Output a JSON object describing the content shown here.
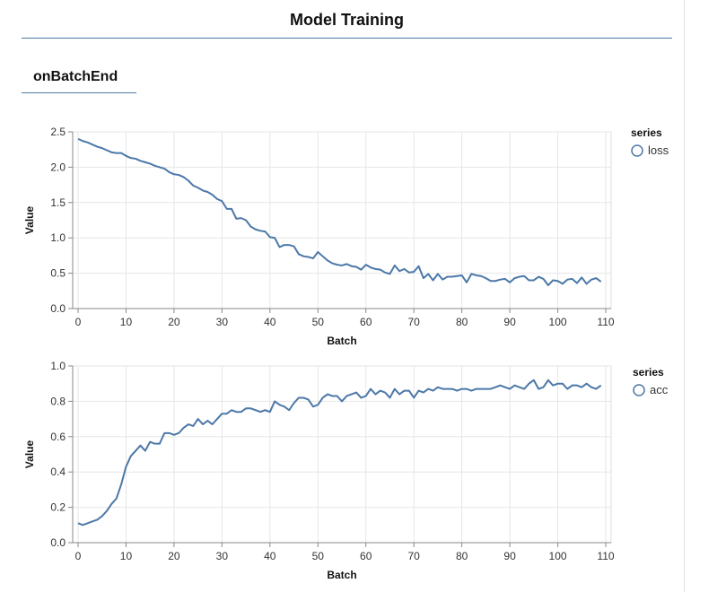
{
  "header": {
    "title": "Model Training"
  },
  "tab": {
    "label": "onBatchEnd"
  },
  "colors": {
    "series": "#4c78a8",
    "grid": "#e6e6e6",
    "accent": "#4f7aa3"
  },
  "chart_data": [
    {
      "type": "line",
      "xlabel": "Batch",
      "ylabel": "Value",
      "xlim": [
        0,
        110
      ],
      "ylim": [
        0,
        2.5
      ],
      "xticks": [
        "0",
        "10",
        "20",
        "30",
        "40",
        "50",
        "60",
        "70",
        "80",
        "90",
        "100",
        "110"
      ],
      "xtick_values": [
        0,
        10,
        20,
        30,
        40,
        50,
        60,
        70,
        80,
        90,
        100,
        110
      ],
      "yticks": [
        "0.0",
        "0.5",
        "1.0",
        "1.5",
        "2.0",
        "2.5"
      ],
      "ytick_values": [
        0,
        0.5,
        1.0,
        1.5,
        2.0,
        2.5
      ],
      "grid": true,
      "legend": {
        "title": "series",
        "placement": "right"
      },
      "series": [
        {
          "name": "loss",
          "x": [
            0,
            1,
            2,
            3,
            4,
            5,
            6,
            7,
            8,
            9,
            10,
            11,
            12,
            13,
            14,
            15,
            16,
            17,
            18,
            19,
            20,
            21,
            22,
            23,
            24,
            25,
            26,
            27,
            28,
            29,
            30,
            31,
            32,
            33,
            34,
            35,
            36,
            37,
            38,
            39,
            40,
            41,
            42,
            43,
            44,
            45,
            46,
            47,
            48,
            49,
            50,
            51,
            52,
            53,
            54,
            55,
            56,
            57,
            58,
            59,
            60,
            61,
            62,
            63,
            64,
            65,
            66,
            67,
            68,
            69,
            70,
            71,
            72,
            73,
            74,
            75,
            76,
            77,
            78,
            79,
            80,
            81,
            82,
            83,
            84,
            85,
            86,
            87,
            88,
            89,
            90,
            91,
            92,
            93,
            94,
            95,
            96,
            97,
            98,
            99,
            100,
            101,
            102,
            103,
            104,
            105,
            106,
            107,
            108,
            109
          ],
          "values": [
            2.4,
            2.37,
            2.35,
            2.32,
            2.29,
            2.27,
            2.24,
            2.21,
            2.2,
            2.2,
            2.16,
            2.13,
            2.12,
            2.09,
            2.07,
            2.05,
            2.02,
            2.0,
            1.98,
            1.93,
            1.9,
            1.89,
            1.86,
            1.81,
            1.74,
            1.71,
            1.67,
            1.65,
            1.61,
            1.55,
            1.52,
            1.41,
            1.41,
            1.27,
            1.28,
            1.25,
            1.16,
            1.12,
            1.1,
            1.09,
            1.01,
            1.0,
            0.87,
            0.9,
            0.9,
            0.88,
            0.77,
            0.74,
            0.73,
            0.71,
            0.8,
            0.74,
            0.68,
            0.64,
            0.62,
            0.61,
            0.63,
            0.6,
            0.59,
            0.55,
            0.62,
            0.58,
            0.56,
            0.55,
            0.51,
            0.49,
            0.61,
            0.53,
            0.56,
            0.51,
            0.52,
            0.6,
            0.43,
            0.49,
            0.4,
            0.49,
            0.41,
            0.45,
            0.45,
            0.46,
            0.47,
            0.37,
            0.49,
            0.47,
            0.46,
            0.43,
            0.39,
            0.39,
            0.41,
            0.42,
            0.37,
            0.43,
            0.45,
            0.46,
            0.4,
            0.4,
            0.45,
            0.42,
            0.33,
            0.4,
            0.39,
            0.35,
            0.41,
            0.42,
            0.36,
            0.44,
            0.35,
            0.41,
            0.43,
            0.38
          ]
        }
      ]
    },
    {
      "type": "line",
      "xlabel": "Batch",
      "ylabel": "Value",
      "xlim": [
        0,
        110
      ],
      "ylim": [
        0,
        1.0
      ],
      "xticks": [
        "0",
        "10",
        "20",
        "30",
        "40",
        "50",
        "60",
        "70",
        "80",
        "90",
        "100",
        "110"
      ],
      "xtick_values": [
        0,
        10,
        20,
        30,
        40,
        50,
        60,
        70,
        80,
        90,
        100,
        110
      ],
      "yticks": [
        "0.0",
        "0.2",
        "0.4",
        "0.6",
        "0.8",
        "1.0"
      ],
      "ytick_values": [
        0,
        0.2,
        0.4,
        0.6,
        0.8,
        1.0
      ],
      "grid": true,
      "legend": {
        "title": "series",
        "placement": "right"
      },
      "series": [
        {
          "name": "acc",
          "x": [
            0,
            1,
            2,
            3,
            4,
            5,
            6,
            7,
            8,
            9,
            10,
            11,
            12,
            13,
            14,
            15,
            16,
            17,
            18,
            19,
            20,
            21,
            22,
            23,
            24,
            25,
            26,
            27,
            28,
            29,
            30,
            31,
            32,
            33,
            34,
            35,
            36,
            37,
            38,
            39,
            40,
            41,
            42,
            43,
            44,
            45,
            46,
            47,
            48,
            49,
            50,
            51,
            52,
            53,
            54,
            55,
            56,
            57,
            58,
            59,
            60,
            61,
            62,
            63,
            64,
            65,
            66,
            67,
            68,
            69,
            70,
            71,
            72,
            73,
            74,
            75,
            76,
            77,
            78,
            79,
            80,
            81,
            82,
            83,
            84,
            85,
            86,
            87,
            88,
            89,
            90,
            91,
            92,
            93,
            94,
            95,
            96,
            97,
            98,
            99,
            100,
            101,
            102,
            103,
            104,
            105,
            106,
            107,
            108,
            109
          ],
          "values": [
            0.11,
            0.1,
            0.11,
            0.12,
            0.13,
            0.15,
            0.18,
            0.22,
            0.25,
            0.33,
            0.43,
            0.49,
            0.52,
            0.55,
            0.52,
            0.57,
            0.56,
            0.56,
            0.62,
            0.62,
            0.61,
            0.62,
            0.65,
            0.67,
            0.66,
            0.7,
            0.67,
            0.69,
            0.67,
            0.7,
            0.73,
            0.73,
            0.75,
            0.74,
            0.74,
            0.76,
            0.76,
            0.75,
            0.74,
            0.75,
            0.74,
            0.8,
            0.78,
            0.77,
            0.75,
            0.79,
            0.82,
            0.82,
            0.81,
            0.77,
            0.78,
            0.82,
            0.84,
            0.83,
            0.83,
            0.8,
            0.83,
            0.84,
            0.85,
            0.82,
            0.83,
            0.87,
            0.84,
            0.86,
            0.85,
            0.82,
            0.87,
            0.84,
            0.86,
            0.86,
            0.82,
            0.86,
            0.85,
            0.87,
            0.86,
            0.88,
            0.87,
            0.87,
            0.87,
            0.86,
            0.87,
            0.87,
            0.86,
            0.87,
            0.87,
            0.87,
            0.87,
            0.88,
            0.89,
            0.88,
            0.87,
            0.89,
            0.88,
            0.87,
            0.9,
            0.92,
            0.87,
            0.88,
            0.92,
            0.89,
            0.9,
            0.9,
            0.87,
            0.89,
            0.89,
            0.88,
            0.9,
            0.88,
            0.87,
            0.89
          ]
        }
      ]
    }
  ]
}
